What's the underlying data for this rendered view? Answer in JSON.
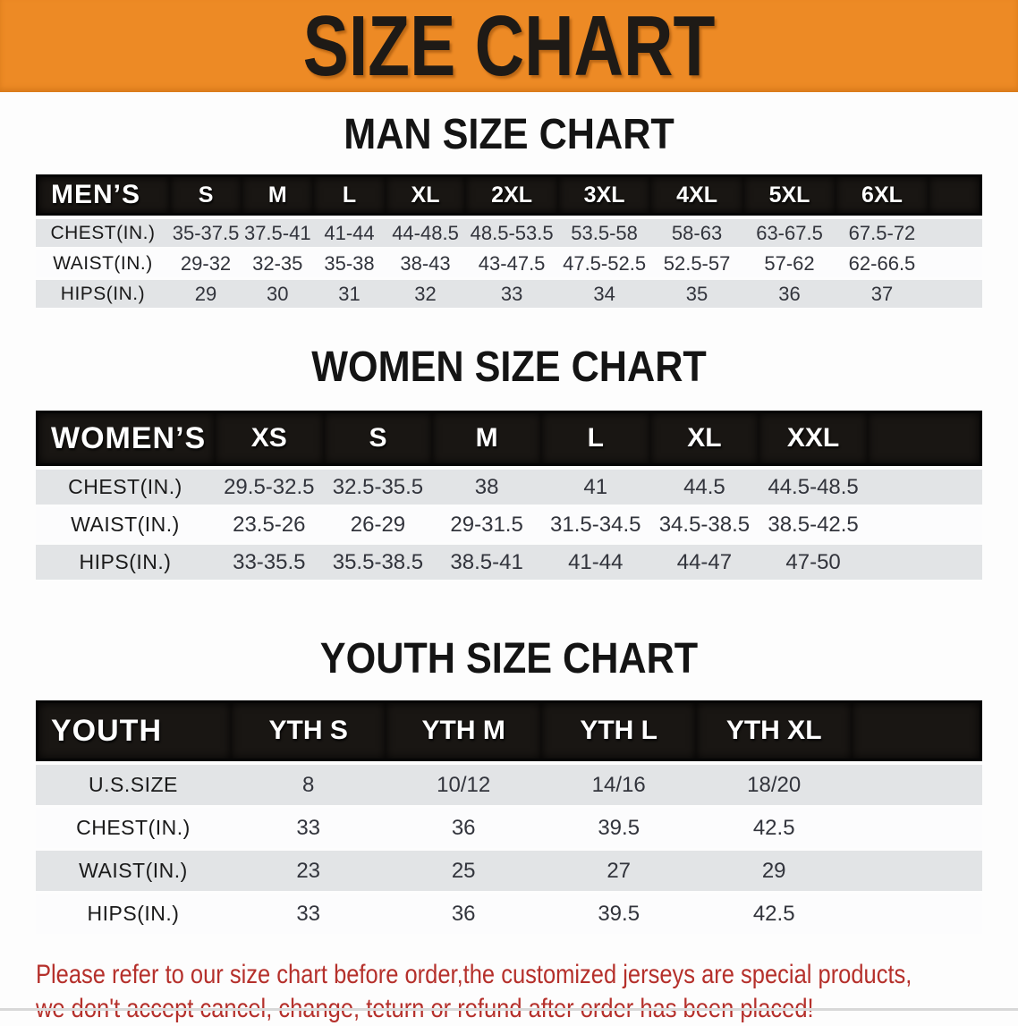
{
  "banner": {
    "title": "SIZE CHART",
    "bg_color": "#ED8A25",
    "text_color": "#1E1A16"
  },
  "sections": [
    {
      "heading": "MAN SIZE CHART",
      "table": {
        "header_label": "MEN’S",
        "columns": [
          "S",
          "M",
          "L",
          "XL",
          "2XL",
          "3XL",
          "4XL",
          "5XL",
          "6XL"
        ],
        "rows": [
          {
            "label": "CHEST(IN.)",
            "values": [
              "35-37.5",
              "37.5-41",
              "41-44",
              "44-48.5",
              "48.5-53.5",
              "53.5-58",
              "58-63",
              "63-67.5",
              "67.5-72"
            ]
          },
          {
            "label": "WAIST(IN.)",
            "values": [
              "29-32",
              "32-35",
              "35-38",
              "38-43",
              "43-47.5",
              "47.5-52.5",
              "52.5-57",
              "57-62",
              "62-66.5"
            ]
          },
          {
            "label": "HIPS(IN.)",
            "values": [
              "29",
              "30",
              "31",
              "32",
              "33",
              "34",
              "35",
              "36",
              "37"
            ]
          }
        ]
      }
    },
    {
      "heading": "WOMEN SIZE CHART",
      "table": {
        "header_label": "WOMEN’S",
        "columns": [
          "XS",
          "S",
          "M",
          "L",
          "XL",
          "XXL"
        ],
        "rows": [
          {
            "label": "CHEST(IN.)",
            "values": [
              "29.5-32.5",
              "32.5-35.5",
              "38",
              "41",
              "44.5",
              "44.5-48.5"
            ]
          },
          {
            "label": "WAIST(IN.)",
            "values": [
              "23.5-26",
              "26-29",
              "29-31.5",
              "31.5-34.5",
              "34.5-38.5",
              "38.5-42.5"
            ]
          },
          {
            "label": "HIPS(IN.)",
            "values": [
              "33-35.5",
              "35.5-38.5",
              "38.5-41",
              "41-44",
              "44-47",
              "47-50"
            ]
          }
        ]
      }
    },
    {
      "heading": "YOUTH SIZE CHART",
      "table": {
        "header_label": "YOUTH",
        "columns": [
          "YTH S",
          "YTH M",
          "YTH L",
          "YTH XL"
        ],
        "rows": [
          {
            "label": "U.S.SIZE",
            "values": [
              "8",
              "10/12",
              "14/16",
              "18/20"
            ]
          },
          {
            "label": "CHEST(IN.)",
            "values": [
              "33",
              "36",
              "39.5",
              "42.5"
            ]
          },
          {
            "label": "WAIST(IN.)",
            "values": [
              "23",
              "25",
              "27",
              "29"
            ]
          },
          {
            "label": "HIPS(IN.)",
            "values": [
              "33",
              "36",
              "39.5",
              "42.5"
            ]
          }
        ]
      }
    }
  ],
  "disclaimer": {
    "line1": "Please refer to our size chart before order,the customized jerseys are special products,",
    "line2": "we don't accept cancel, change, teturn or refund after order has been placed!",
    "text_color": "#B5302B"
  },
  "colors": {
    "table_header_bg": "#191613",
    "table_header_text": "#FFFFFF",
    "row_stripe": "#E2E4E6",
    "row_plain": "#FCFCFD"
  }
}
